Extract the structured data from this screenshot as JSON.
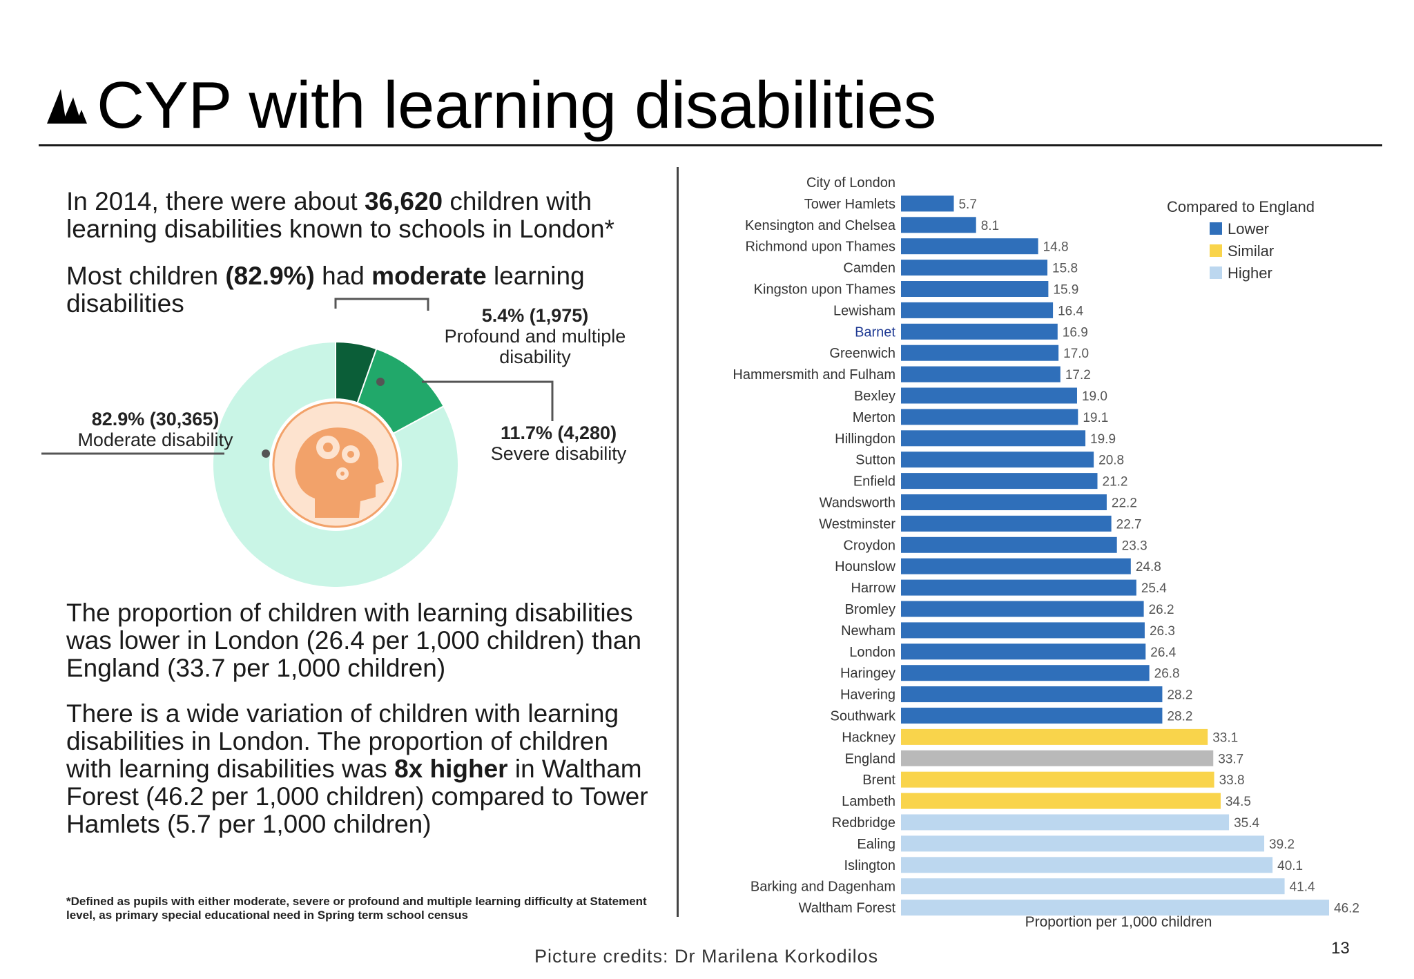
{
  "header": {
    "title": "CYP with learning disabilities",
    "logo_icon": "nhs-mountains-logo-icon"
  },
  "left": {
    "p1": {
      "a": "In 2014, there were about ",
      "b": "36,620",
      "c": " children with learning disabilities known to schools in London*"
    },
    "p2": {
      "a": "Most children ",
      "b": "(82.9%)",
      "c": " had ",
      "d": "moderate",
      "e": " learning disabilities"
    },
    "p3": "The proportion of children with learning disabilities was lower in London (26.4  per 1,000 children) than England (33.7 per 1,000 children)",
    "p4": {
      "a": "There is a wide variation of children with learning disabilities in London. The proportion of children with learning disabilities was ",
      "b": "8x higher",
      "c": " in Waltham Forest (46.2 per 1,000 children) compared to Tower Hamlets (5.7 per 1,000 children)"
    },
    "footnote": "*Defined as pupils with either moderate, severe or profound and multiple learning difficulty at Statement level, as primary special educational need in Spring term school census"
  },
  "donut": {
    "center_icon": "head-gears-icon",
    "segments": [
      {
        "pct_label": "82.9% (30,365)",
        "name": "Moderate disability",
        "value": 82.9,
        "color": "#c9f5e6"
      },
      {
        "pct_label": "11.7% (4,280)",
        "name": "Severe disability",
        "value": 11.7,
        "color": "#21a86a"
      },
      {
        "pct_label": "5.4% (1,975)",
        "name": "Profound and multiple disability",
        "value": 5.4,
        "color": "#0b5e38"
      }
    ]
  },
  "chart_data": {
    "type": "bar",
    "orientation": "horizontal",
    "xlabel": "Proportion per 1,000 children",
    "legend": {
      "title": "Compared to England",
      "position": "top-right",
      "items": [
        {
          "label": "Lower",
          "color": "#2f6fba"
        },
        {
          "label": "Similar",
          "color": "#f9d44b"
        },
        {
          "label": "Higher",
          "color": "#bcd7ef"
        }
      ]
    },
    "xlim": [
      0,
      46.2
    ],
    "categories": [
      "City of London",
      "Tower Hamlets",
      "Kensington and Chelsea",
      "Richmond upon Thames",
      "Camden",
      "Kingston upon Thames",
      "Lewisham",
      "Barnet",
      "Greenwich",
      "Hammersmith and Fulham",
      "Bexley",
      "Merton",
      "Hillingdon",
      "Sutton",
      "Enfield",
      "Wandsworth",
      "Westminster",
      "Croydon",
      "Hounslow",
      "Harrow",
      "Bromley",
      "Newham",
      "London",
      "Haringey",
      "Havering",
      "Southwark",
      "Hackney",
      "England",
      "Brent",
      "Lambeth",
      "Redbridge",
      "Ealing",
      "Islington",
      "Barking and Dagenham",
      "Waltham Forest"
    ],
    "values": [
      null,
      5.7,
      8.1,
      14.8,
      15.8,
      15.9,
      16.4,
      16.9,
      17.0,
      17.2,
      19.0,
      19.1,
      19.9,
      20.8,
      21.2,
      22.2,
      22.7,
      23.3,
      24.8,
      25.4,
      26.2,
      26.3,
      26.4,
      26.8,
      28.2,
      28.2,
      33.1,
      33.7,
      33.8,
      34.5,
      35.4,
      39.2,
      40.1,
      41.4,
      46.2
    ],
    "value_labels": [
      "",
      "5.7",
      "8.1",
      "14.8",
      "15.8",
      "15.9",
      "16.4",
      "16.9",
      "17.0",
      "17.2",
      "19.0",
      "19.1",
      "19.9",
      "20.8",
      "21.2",
      "22.2",
      "22.7",
      "23.3",
      "24.8",
      "25.4",
      "26.2",
      "26.3",
      "26.4",
      "26.8",
      "28.2",
      "28.2",
      "33.1",
      "33.7",
      "33.8",
      "34.5",
      "35.4",
      "39.2",
      "40.1",
      "41.4",
      "46.2"
    ],
    "groups": [
      "none",
      "Lower",
      "Lower",
      "Lower",
      "Lower",
      "Lower",
      "Lower",
      "Lower",
      "Lower",
      "Lower",
      "Lower",
      "Lower",
      "Lower",
      "Lower",
      "Lower",
      "Lower",
      "Lower",
      "Lower",
      "Lower",
      "Lower",
      "Lower",
      "Lower",
      "Lower",
      "Lower",
      "Lower",
      "Lower",
      "Similar",
      "England",
      "Similar",
      "Similar",
      "Higher",
      "Higher",
      "Higher",
      "Higher",
      "Higher"
    ],
    "group_colors": {
      "Lower": "#2f6fba",
      "Similar": "#f9d44b",
      "Higher": "#bcd7ef",
      "England": "#b9b9b9",
      "none": "#ffffff"
    },
    "highlight_label": "Barnet",
    "highlight_color": "#1f3a93"
  },
  "footer": {
    "credits": "Picture credits: Dr Marilena Korkodilos",
    "page_number": "13"
  }
}
